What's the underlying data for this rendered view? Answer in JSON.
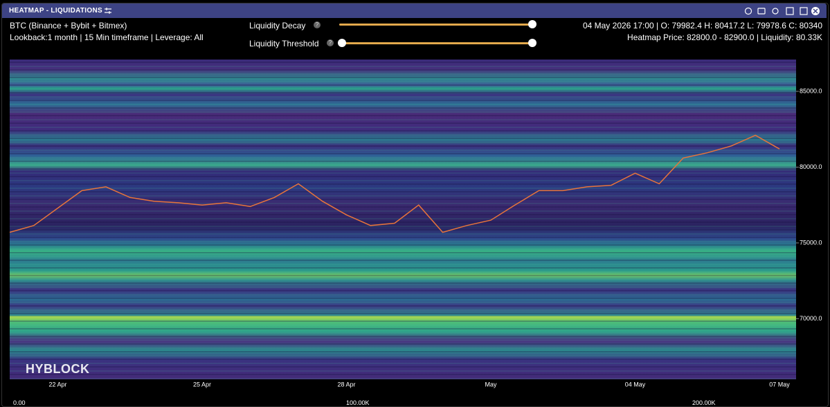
{
  "header": {
    "title": "HEATMAP - LIQUIDATIONS"
  },
  "info": {
    "pair": "BTC (Binance + Bybit + Bitmex)",
    "settings": "Lookback:1 month | 15 Min timeframe | Leverage: All",
    "ohlc": "04 May 2026 17:00 | O: 79982.4 H: 80417.2 L: 79978.6 C: 80340",
    "heatmap": "Heatmap Price: 82800.0 - 82900.0 | Liquidity: 80.33K"
  },
  "controls": [
    {
      "label": "Liquidity Decay"
    },
    {
      "label": "Liquidity Threshold"
    }
  ],
  "watermark": "HYBLOCK",
  "liquidity_scale": [
    "0.00",
    "100.00K",
    "200.00K"
  ],
  "chart_data": {
    "type": "line",
    "categories": [
      null,
      null,
      "22 Apr",
      null,
      null,
      null,
      null,
      null,
      "25 Apr",
      null,
      null,
      null,
      null,
      null,
      "28 Apr",
      null,
      null,
      null,
      null,
      null,
      "May",
      null,
      null,
      null,
      null,
      null,
      "04 May",
      null,
      null,
      null,
      null,
      null,
      "07 May"
    ],
    "values": [
      75700,
      76150,
      77300,
      78450,
      78700,
      78000,
      77750,
      77650,
      77500,
      77650,
      77400,
      78000,
      78900,
      77750,
      76850,
      76150,
      76300,
      77500,
      75700,
      76150,
      76500,
      77500,
      78450,
      78450,
      78700,
      78800,
      79600,
      78900,
      80600,
      80950,
      81400,
      82100,
      81200
    ],
    "color": "#e8743a",
    "ylim": [
      66000,
      87100
    ],
    "yticks": [
      {
        "value": 70000,
        "label": "70000.0"
      },
      {
        "value": 75000,
        "label": "75000.0"
      },
      {
        "value": 80000,
        "label": "80000.0"
      },
      {
        "value": 85000,
        "label": "85000.0"
      }
    ]
  }
}
